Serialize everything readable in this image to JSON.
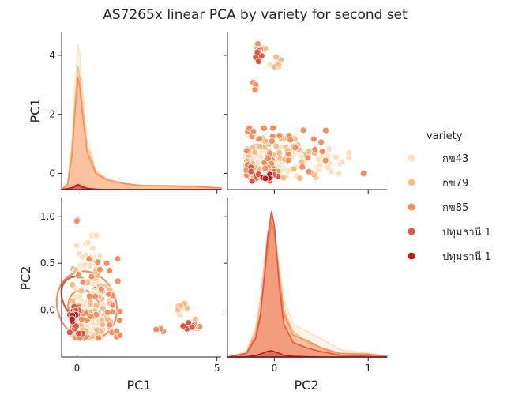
{
  "chart_data": {
    "type": "pairplot",
    "title": "AS7265x linear PCA by variety for second set",
    "variables": [
      "PC1",
      "PC2"
    ],
    "legend": {
      "title": "variety",
      "placement": "right",
      "entries": [
        {
          "name": "กข43",
          "color": "#fde0c0"
        },
        {
          "name": "กข79",
          "color": "#fcbb84"
        },
        {
          "name": "กข85",
          "color": "#f68d5a"
        },
        {
          "name": "ปทุมธานี 1",
          "color": "#e15643"
        },
        {
          "name": "ปทุมธานี 1",
          "color": "#c01b1b"
        }
      ]
    },
    "axes": {
      "PC1": {
        "lim": [
          -0.55,
          5.15
        ],
        "kde_lim": [
          -0.55,
          4.8
        ],
        "ticks": [
          0,
          5
        ],
        "kde_ticks": [
          0,
          2,
          4
        ]
      },
      "PC2": {
        "lim": [
          -0.5,
          1.2
        ],
        "ticks": [
          0.0,
          0.5,
          1.0
        ],
        "tick_labels": [
          "0.0",
          "0.5",
          "1.0"
        ],
        "diag_ticks": [
          0,
          1
        ]
      }
    },
    "pc1_kde": {
      "x": [
        -0.55,
        -0.35,
        -0.2,
        -0.1,
        0.0,
        0.05,
        0.15,
        0.3,
        0.6,
        1.0,
        1.5,
        2.0,
        3.0,
        4.0,
        4.8
      ],
      "series": [
        {
          "name": "กข43",
          "density": [
            0,
            0.2,
            1.5,
            3.2,
            4.6,
            4.3,
            3.2,
            1.6,
            0.6,
            0.35,
            0.2,
            0.15,
            0.1,
            0.08,
            0.04
          ]
        },
        {
          "name": "กข79",
          "density": [
            0,
            0.18,
            1.3,
            2.8,
            3.9,
            3.6,
            2.7,
            1.4,
            0.55,
            0.3,
            0.2,
            0.14,
            0.1,
            0.08,
            0.04
          ]
        },
        {
          "name": "กข85",
          "density": [
            0,
            0.15,
            1.1,
            2.5,
            3.55,
            3.3,
            2.4,
            1.2,
            0.5,
            0.3,
            0.2,
            0.13,
            0.12,
            0.1,
            0.05
          ]
        },
        {
          "name": "ปทุมธานี 1",
          "density": [
            0,
            0.02,
            0.04,
            0.08,
            0.1,
            0.09,
            0.06,
            0.03,
            0.01,
            0,
            0,
            0,
            0,
            0,
            0
          ]
        },
        {
          "name": "ปทุมธานี 1",
          "density": [
            0,
            0.03,
            0.06,
            0.12,
            0.16,
            0.14,
            0.09,
            0.04,
            0.01,
            0,
            0,
            0,
            0,
            0,
            0
          ]
        }
      ]
    },
    "pc2_kde": {
      "x": [
        -0.5,
        -0.3,
        -0.2,
        -0.15,
        -0.1,
        -0.07,
        -0.03,
        0.0,
        0.05,
        0.1,
        0.2,
        0.35,
        0.5,
        0.7,
        1.0,
        1.2
      ],
      "series": [
        {
          "name": "กข43",
          "density": [
            0,
            0.15,
            0.8,
            1.6,
            2.6,
            3.2,
            3.5,
            3.3,
            2.5,
            1.6,
            0.9,
            0.7,
            0.5,
            0.2,
            0.1,
            0.02
          ]
        },
        {
          "name": "กข79",
          "density": [
            0,
            0.1,
            0.7,
            1.5,
            2.7,
            3.4,
            3.9,
            3.6,
            2.4,
            1.3,
            0.7,
            0.4,
            0.2,
            0.1,
            0.05,
            0.01
          ]
        },
        {
          "name": "กข85",
          "density": [
            0,
            0.1,
            0.6,
            1.2,
            2.3,
            3.0,
            3.7,
            3.4,
            2.2,
            1.2,
            0.6,
            0.45,
            0.25,
            0.1,
            0.08,
            0.02
          ]
        },
        {
          "name": "ปทุมธานี 1",
          "density": [
            0,
            0.1,
            0.5,
            1.1,
            2.4,
            3.3,
            4.0,
            3.6,
            2.0,
            0.9,
            0.4,
            0.25,
            0.15,
            0.05,
            0.02,
            0
          ]
        },
        {
          "name": "ปทุมธานี 1",
          "density": [
            0,
            0.01,
            0.04,
            0.08,
            0.13,
            0.16,
            0.17,
            0.15,
            0.1,
            0.05,
            0.02,
            0.01,
            0,
            0,
            0,
            0
          ]
        }
      ]
    },
    "scatter": {
      "series": [
        {
          "name": "กข43",
          "clusters": [
            {
              "pc1": [
                -0.1,
                0.9
              ],
              "pc2": [
                -0.3,
                0.8
              ],
              "n": 70
            },
            {
              "pc1": [
                0.0,
                0.8
              ],
              "pc2": [
                -0.2,
                0.5
              ],
              "n": 30
            },
            {
              "pc1": [
                -0.1,
                0.5
              ],
              "pc2": [
                -0.25,
                0.0
              ],
              "n": 20
            },
            {
              "pc1": [
                3.6,
                4.0
              ],
              "pc2": [
                -0.05,
                0.05
              ],
              "n": 5
            }
          ]
        },
        {
          "name": "กข79",
          "clusters": [
            {
              "pc1": [
                -0.2,
                1.2
              ],
              "pc2": [
                -0.3,
                0.45
              ],
              "n": 55
            },
            {
              "pc1": [
                4.0,
                4.4
              ],
              "pc2": [
                -0.2,
                0.05
              ],
              "n": 6
            },
            {
              "pc1": [
                3.6,
                4.1
              ],
              "pc2": [
                0.0,
                0.08
              ],
              "n": 5
            }
          ]
        },
        {
          "name": "กข85",
          "clusters": [
            {
              "pc1": [
                -0.2,
                1.6
              ],
              "pc2": [
                -0.3,
                0.6
              ],
              "n": 45
            },
            {
              "pc1": [
                -0.05,
                0.05
              ],
              "pc2": [
                0.95,
                1.05
              ],
              "n": 3
            },
            {
              "pc1": [
                2.6,
                3.1
              ],
              "pc2": [
                -0.25,
                -0.18
              ],
              "n": 3
            },
            {
              "pc1": [
                4.1,
                4.4
              ],
              "pc2": [
                -0.18,
                -0.08
              ],
              "n": 5
            }
          ]
        },
        {
          "name": "ปทุมธานี 1",
          "clusters": [
            {
              "pc1": [
                -0.3,
                0.3
              ],
              "pc2": [
                -0.25,
                0.05
              ],
              "n": 12
            },
            {
              "pc1": [
                3.6,
                4.2
              ],
              "pc2": [
                -0.2,
                0.0
              ],
              "n": 6
            }
          ]
        },
        {
          "name": "ปทุมธานี 1",
          "clusters": [
            {
              "pc1": [
                -0.2,
                0.05
              ],
              "pc2": [
                -0.2,
                0.0
              ],
              "n": 5
            }
          ]
        }
      ],
      "highlight_points": [
        {
          "pc1": [
            3.8,
            4.3
          ],
          "pc2": [
            -0.1,
            0.0
          ],
          "n": 3
        },
        {
          "pc1": [
            2.9,
            3.1
          ],
          "pc2": [
            -0.22,
            -0.18
          ],
          "n": 2
        }
      ]
    },
    "contours": [
      {
        "name": "กข85",
        "levels": [
          {
            "center": [
              0.35,
              0.05
            ],
            "rx": 1.05,
            "ry": 0.37,
            "rot": -20
          },
          {
            "center": [
              0.25,
              0.02
            ],
            "rx": 0.55,
            "ry": 0.2,
            "rot": -20
          }
        ]
      },
      {
        "name": "ปทุมธานี 1",
        "levels": [
          {
            "center": [
              0.2,
              0.1
            ],
            "rx": 0.65,
            "ry": 0.28,
            "rot": -35
          },
          {
            "center": [
              0.1,
              -0.05
            ],
            "rx": 0.28,
            "ry": 0.12,
            "rot": -20
          }
        ]
      },
      {
        "name": "ปทุมธานี 1",
        "levels": [
          {
            "center": [
              -0.05,
              -0.08
            ],
            "rx": 0.2,
            "ry": 0.1,
            "rot": 0
          }
        ]
      }
    ]
  }
}
